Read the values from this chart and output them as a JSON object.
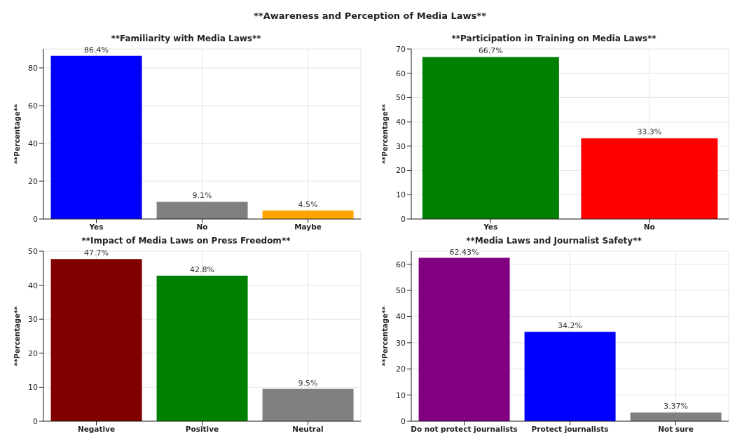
{
  "chart_data": [
    {
      "type": "bar",
      "title": "**Familiarity with Media Laws**",
      "ylabel": "**Percentage**",
      "annotations": [
        "**Awareness and Perception of Media Laws**"
      ],
      "categories": [
        "Yes",
        "No",
        "Maybe"
      ],
      "values": [
        86.4,
        9.1,
        4.5
      ],
      "colors": [
        "#0000ff",
        "#808080",
        "#ffa500"
      ],
      "value_labels": [
        "86.4%",
        "9.1%",
        "4.5%"
      ],
      "ylim": [
        0,
        90
      ],
      "yticks": [
        0,
        20,
        40,
        60,
        80
      ],
      "grid": true
    },
    {
      "type": "bar",
      "title": "**Participation in Training on Media Laws**",
      "ylabel": "**Percentage**",
      "categories": [
        "Yes",
        "No"
      ],
      "values": [
        66.7,
        33.3
      ],
      "colors": [
        "#008000",
        "#ff0000"
      ],
      "value_labels": [
        "66.7%",
        "33.3%"
      ],
      "ylim": [
        0,
        70
      ],
      "yticks": [
        0,
        10,
        20,
        30,
        40,
        50,
        60,
        70
      ],
      "grid": true
    },
    {
      "type": "bar",
      "title": "**Impact of Media Laws on Press Freedom**",
      "ylabel": "**Percentage**",
      "categories": [
        "Negative",
        "Positive",
        "Neutral"
      ],
      "values": [
        47.7,
        42.8,
        9.5
      ],
      "colors": [
        "#800000",
        "#008000",
        "#808080"
      ],
      "value_labels": [
        "47.7%",
        "42.8%",
        "9.5%"
      ],
      "ylim": [
        0,
        50
      ],
      "yticks": [
        0,
        10,
        20,
        30,
        40,
        50
      ],
      "grid": true
    },
    {
      "type": "bar",
      "title": "**Media Laws and Journalist Safety**",
      "ylabel": "**Percentage**",
      "categories": [
        "Do not protect journalists",
        "Protect journalists",
        "Not sure"
      ],
      "values": [
        62.43,
        34.2,
        3.37
      ],
      "colors": [
        "#800080",
        "#0000ff",
        "#808080"
      ],
      "value_labels": [
        "62.43%",
        "34.2%",
        "3.37%"
      ],
      "ylim": [
        0,
        65
      ],
      "yticks": [
        0,
        10,
        20,
        30,
        40,
        50,
        60
      ],
      "grid": true
    }
  ]
}
